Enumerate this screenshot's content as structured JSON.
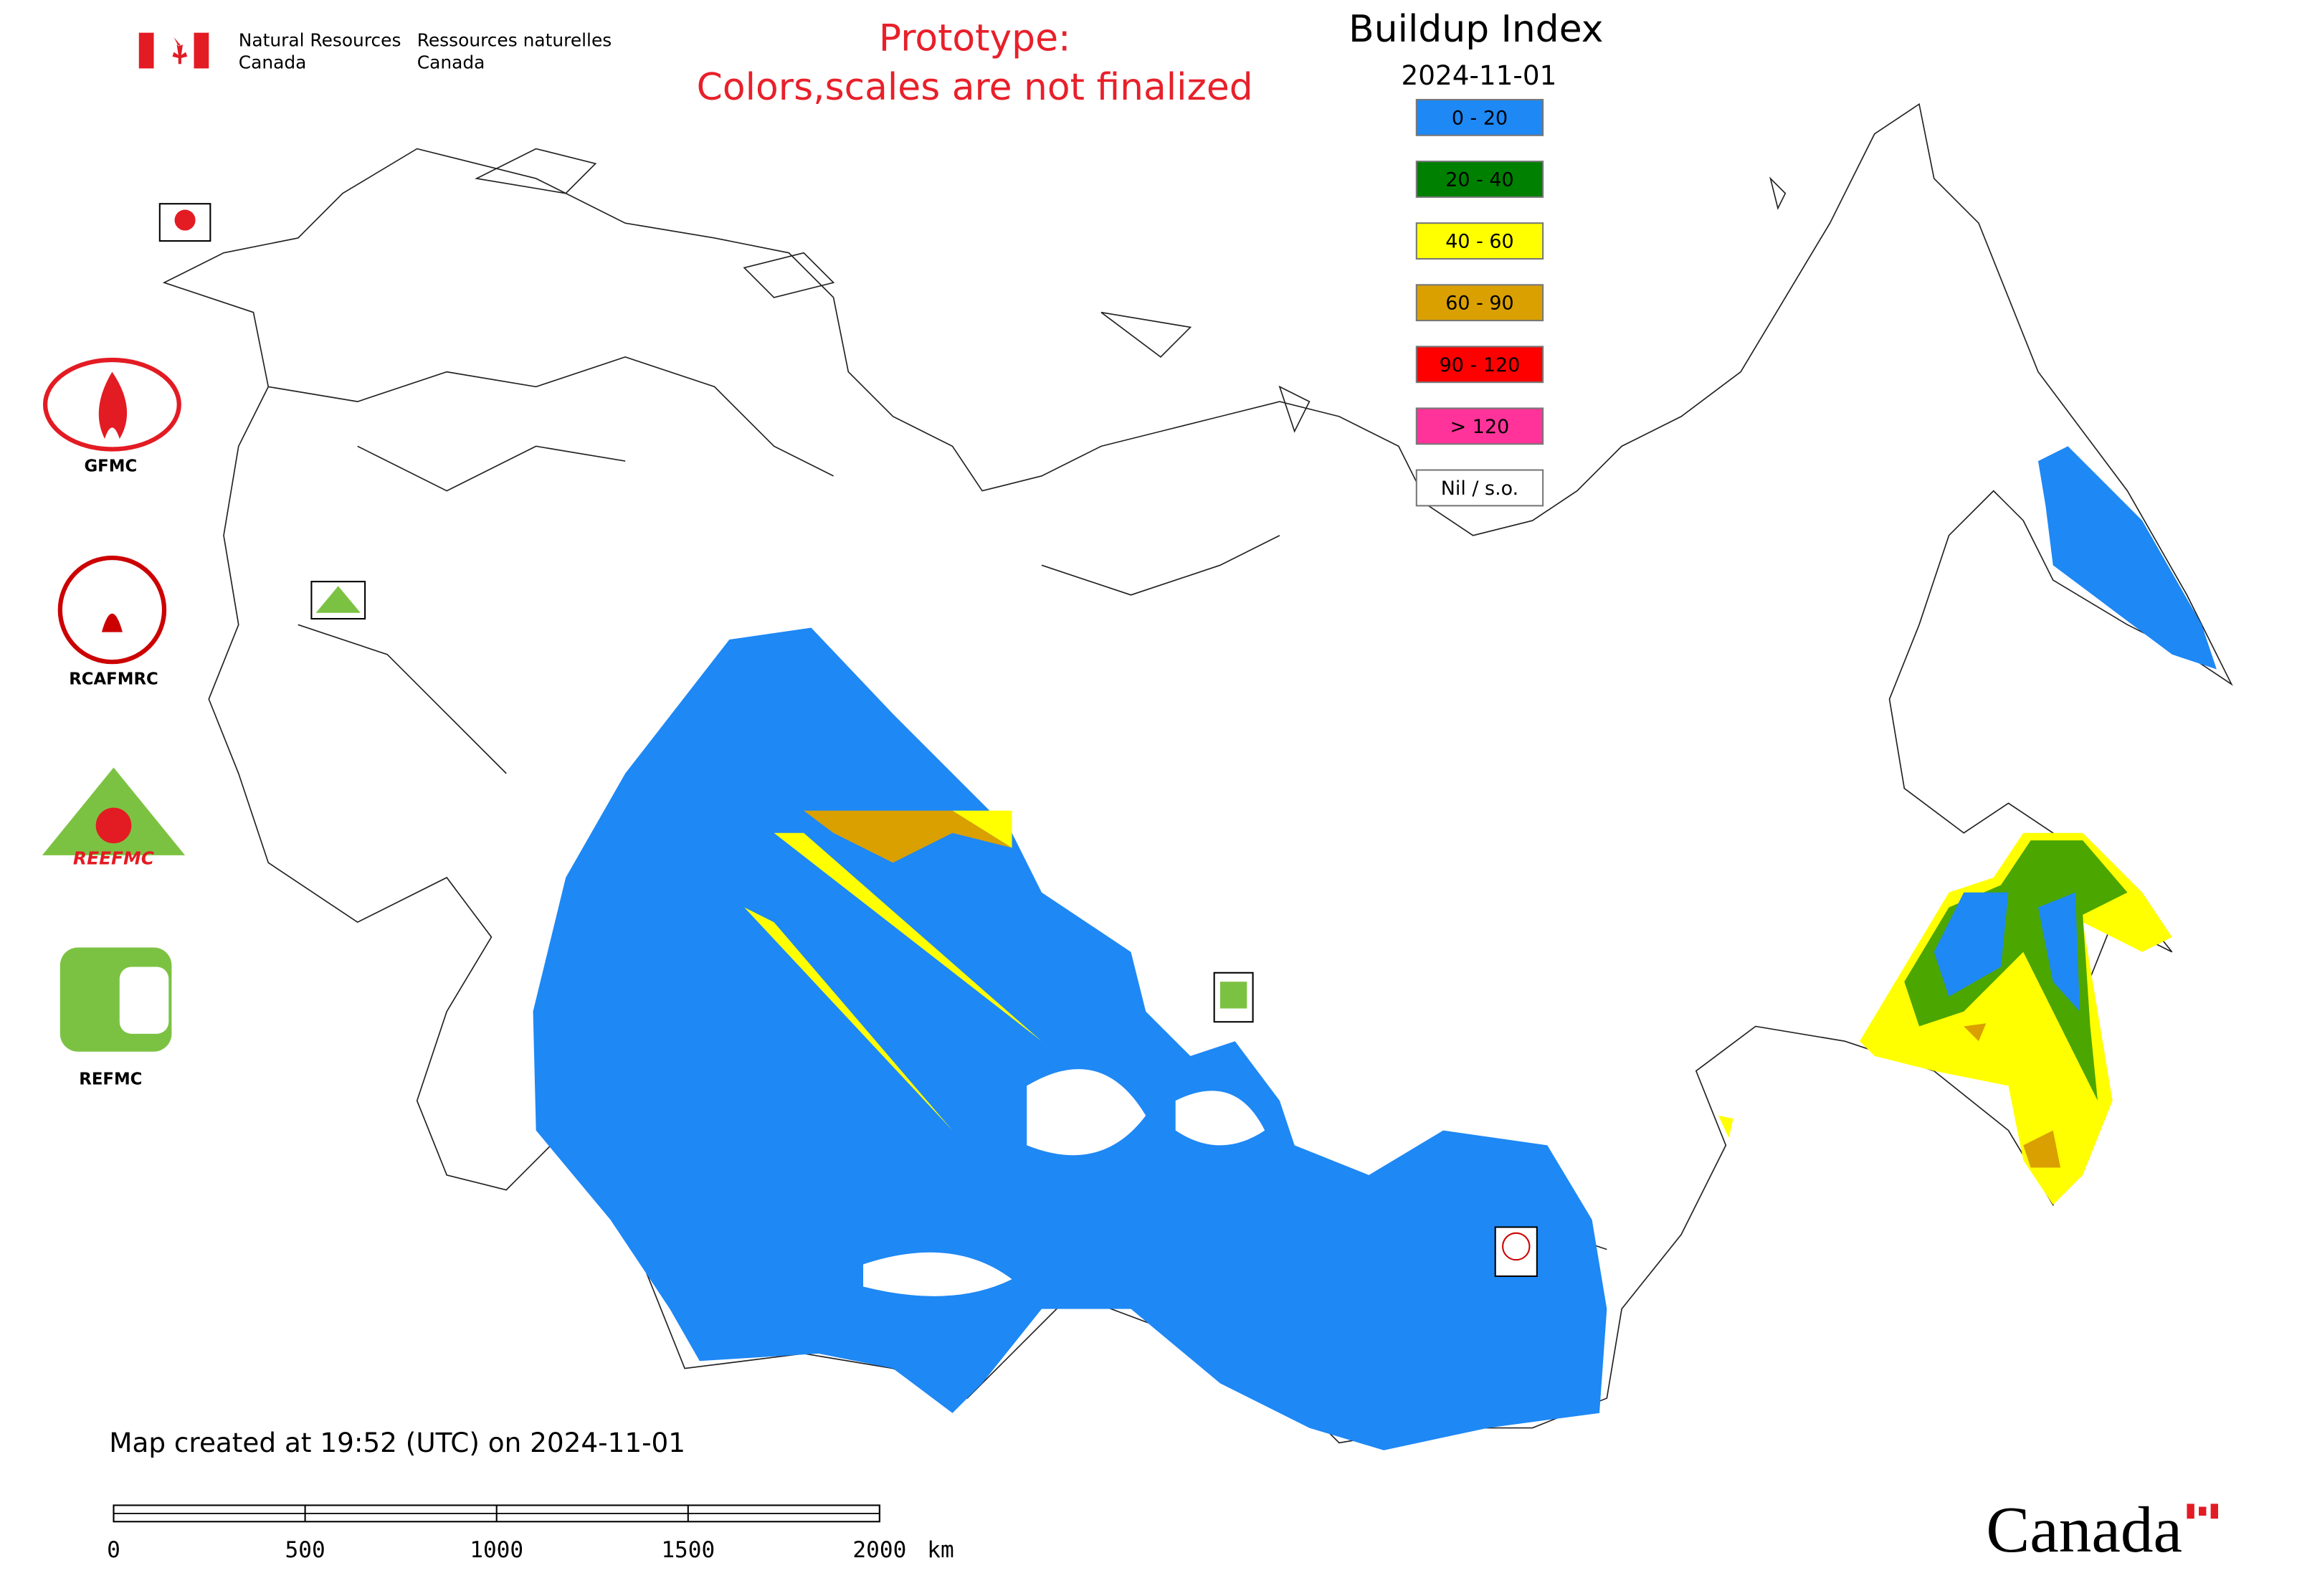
{
  "header": {
    "agency_en": [
      "Natural Resources",
      "Canada"
    ],
    "agency_fr": [
      "Ressources naturelles",
      "Canada"
    ],
    "notice": [
      "Prototype:",
      "Colors,scales are not finalized"
    ]
  },
  "legend": {
    "title": "Buildup Index",
    "date": "2024-11-01",
    "items": [
      {
        "label": "0 - 20",
        "color": "#1e88f5"
      },
      {
        "label": "20 - 40",
        "color": "#008000"
      },
      {
        "label": "40 - 60",
        "color": "#ffff00"
      },
      {
        "label": "60 - 90",
        "color": "#daa000"
      },
      {
        "label": "90 - 120",
        "color": "#ff0000"
      },
      {
        "label": "> 120",
        "color": "#ff3399"
      },
      {
        "label": "Nil / s.o.",
        "color": "#ffffff"
      }
    ]
  },
  "partners": [
    "GFMC",
    "RCAFMRC",
    "REEFMC",
    "REFMC"
  ],
  "footer": {
    "created": "Map created at 19:52 (UTC) on 2024-11-01",
    "wordmark": "Canada"
  },
  "scale_bar": {
    "ticks": [
      0,
      500,
      1000,
      1500,
      2000
    ],
    "unit": "km"
  }
}
